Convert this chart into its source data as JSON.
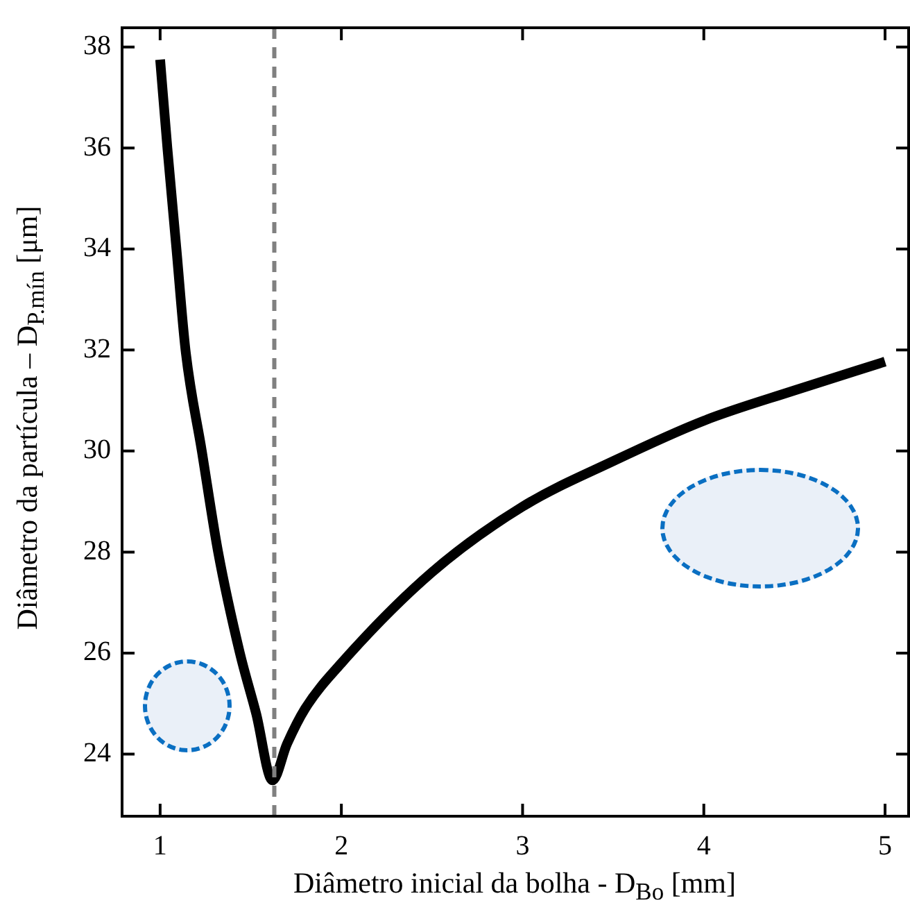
{
  "chart_data": {
    "type": "line",
    "xlabel": "Diâmetro inicial da bolha - D$_{Bo}$ [mm]",
    "ylabel": "Diâmetro da partícula – D$_{P.mín}$ [μm]",
    "x": [
      1,
      1.04,
      1.09,
      1.14,
      1.23,
      1.32,
      1.44,
      1.53,
      1.62,
      1.7,
      1.8,
      2,
      2.5,
      3,
      3.5,
      4,
      4.5,
      5
    ],
    "series": [
      {
        "color": "#000000",
        "values": [
          37.75,
          36,
          34,
          32,
          30,
          28,
          26,
          24.8,
          23.48,
          24.2,
          24.9,
          25.8,
          27.6,
          28.9,
          29.8,
          30.6,
          31.2,
          31.77
        ]
      }
    ],
    "xlim": [
      0.79,
      5.13
    ],
    "ylim": [
      22.77,
      38.38
    ],
    "xticks": [
      1,
      2,
      3,
      4,
      5
    ],
    "yticks": [
      24,
      26,
      28,
      30,
      32,
      34,
      36,
      38
    ],
    "ref_lines": [
      {
        "axis": "x",
        "value": 1.63,
        "color": "#808080",
        "line_style": "dashed"
      }
    ],
    "grid": false,
    "legend": false,
    "marker": "none",
    "line_style": "solid"
  }
}
